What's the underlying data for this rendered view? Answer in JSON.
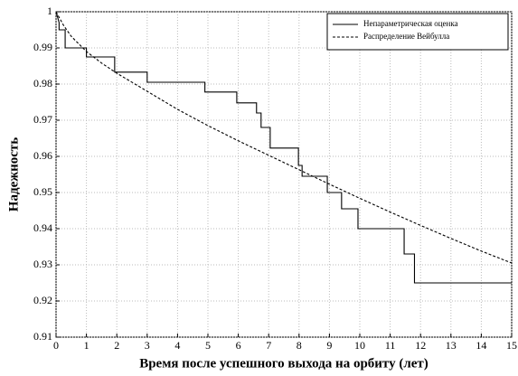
{
  "chart_data": {
    "type": "line",
    "x_label": "Время после успешного выхода на орбиту (лет)",
    "y_label": "Надежность",
    "xlim": [
      0,
      15
    ],
    "ylim": [
      0.91,
      1
    ],
    "xticks": [
      0,
      1,
      2,
      3,
      4,
      5,
      6,
      7,
      8,
      9,
      10,
      11,
      12,
      13,
      14,
      15
    ],
    "yticks": [
      0.91,
      0.92,
      0.93,
      0.94,
      0.95,
      0.96,
      0.97,
      0.98,
      0.99,
      1
    ],
    "grid": true,
    "legend": "upper right",
    "series": [
      {
        "name": "Непараметрическая оценка",
        "color": "#000000",
        "style": "solid",
        "x": [
          0,
          0.1,
          0.1,
          0.3,
          0.3,
          1.0,
          1.0,
          1.93,
          1.93,
          3.0,
          3.0,
          4.9,
          4.9,
          5.95,
          5.95,
          6.6,
          6.6,
          6.75,
          6.75,
          7.05,
          7.05,
          7.98,
          7.98,
          8.1,
          8.1,
          8.93,
          8.93,
          9.4,
          9.4,
          9.94,
          9.94,
          11.46,
          11.46,
          11.8,
          11.8,
          15
        ],
        "values": [
          1,
          0.997,
          0.995,
          0.995,
          0.99,
          0.99,
          0.9875,
          0.9875,
          0.9833,
          0.9833,
          0.9805,
          0.9805,
          0.9778,
          0.9778,
          0.9748,
          0.9748,
          0.972,
          0.972,
          0.968,
          0.968,
          0.9623,
          0.9623,
          0.9575,
          0.9575,
          0.9545,
          0.9545,
          0.95,
          0.95,
          0.9455,
          0.9455,
          0.94,
          0.94,
          0.933,
          0.933,
          0.925,
          0.925
        ]
      },
      {
        "name": "Распределение Вейбулла",
        "color": "#000000",
        "style": "dashed",
        "x": [
          0,
          0.25,
          0.5,
          1,
          1.5,
          2,
          3,
          4,
          5,
          6,
          7,
          8,
          9,
          10,
          11,
          12,
          13,
          14,
          15
        ],
        "values": [
          1,
          0.9962,
          0.9932,
          0.989,
          0.9858,
          0.983,
          0.978,
          0.973,
          0.9685,
          0.9643,
          0.9603,
          0.9563,
          0.9523,
          0.9484,
          0.9446,
          0.9409,
          0.9373,
          0.9338,
          0.9305
        ]
      }
    ]
  }
}
